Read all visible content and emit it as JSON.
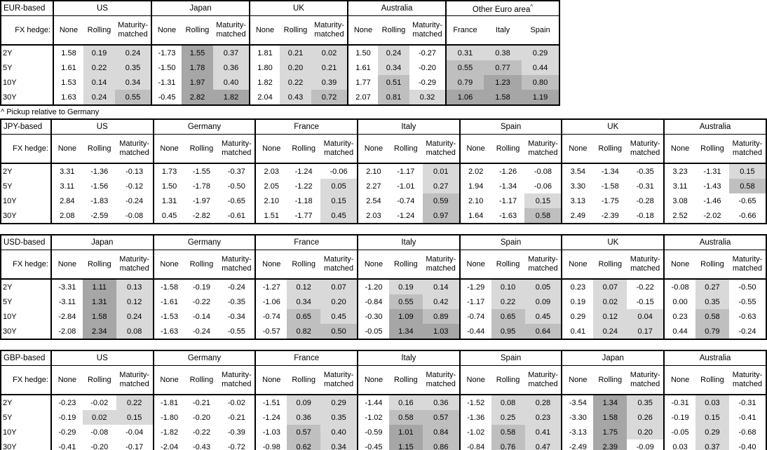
{
  "labels": {
    "hedge": "FX hedge:"
  },
  "tenors": [
    "2Y",
    "5Y",
    "10Y",
    "30Y"
  ],
  "colors": {
    "shade_low": "#d9d9d9",
    "shade_mid": "#bfbfbf",
    "shade_high": "#a6a6a6",
    "border": "#000000"
  },
  "tables": [
    {
      "base": "EUR-based",
      "footnote": "^ Pickup relative to Germany",
      "groups": [
        {
          "name": "US",
          "cols": [
            "None",
            "Rolling",
            "Maturity-matched"
          ],
          "shade_all": false,
          "rows": [
            [
              "1.58",
              "0.19",
              "0.24"
            ],
            [
              "1.61",
              "0.22",
              "0.35"
            ],
            [
              "1.53",
              "0.14",
              "0.34"
            ],
            [
              "1.63",
              "0.24",
              "0.55"
            ]
          ]
        },
        {
          "name": "Japan",
          "cols": [
            "None",
            "Rolling",
            "Maturity-matched"
          ],
          "shade_all": false,
          "rows": [
            [
              "-1.73",
              "1.55",
              "0.37"
            ],
            [
              "-1.50",
              "1.78",
              "0.36"
            ],
            [
              "-1.31",
              "1.97",
              "0.40"
            ],
            [
              "-0.45",
              "2.82",
              "1.82"
            ]
          ]
        },
        {
          "name": "UK",
          "cols": [
            "None",
            "Rolling",
            "Maturity-matched"
          ],
          "shade_all": false,
          "rows": [
            [
              "1.81",
              "0.21",
              "0.02"
            ],
            [
              "1.80",
              "0.20",
              "0.21"
            ],
            [
              "1.82",
              "0.22",
              "0.39"
            ],
            [
              "2.04",
              "0.43",
              "0.72"
            ]
          ]
        },
        {
          "name": "Australia",
          "cols": [
            "None",
            "Rolling",
            "Maturity-matched"
          ],
          "shade_all": false,
          "rows": [
            [
              "1.50",
              "0.24",
              "-0.27"
            ],
            [
              "1.61",
              "0.34",
              "-0.20"
            ],
            [
              "1.77",
              "0.51",
              "-0.29"
            ],
            [
              "2.07",
              "0.81",
              "0.32"
            ]
          ]
        },
        {
          "name": "Other Euro area",
          "sup": "^",
          "cols": [
            "France",
            "Italy",
            "Spain"
          ],
          "shade_all": true,
          "rows": [
            [
              "0.31",
              "0.38",
              "0.29"
            ],
            [
              "0.55",
              "0.77",
              "0.44"
            ],
            [
              "0.79",
              "1.23",
              "0.80"
            ],
            [
              "1.06",
              "1.58",
              "1.19"
            ]
          ]
        }
      ]
    },
    {
      "base": "JPY-based",
      "groups": [
        {
          "name": "US",
          "cols": [
            "None",
            "Rolling",
            "Maturity-matched"
          ],
          "shade_all": false,
          "rows": [
            [
              "3.31",
              "-1.36",
              "-0.13"
            ],
            [
              "3.11",
              "-1.56",
              "-0.12"
            ],
            [
              "2.84",
              "-1.83",
              "-0.24"
            ],
            [
              "2.08",
              "-2.59",
              "-0.08"
            ]
          ]
        },
        {
          "name": "Germany",
          "cols": [
            "None",
            "Rolling",
            "Maturity-matched"
          ],
          "shade_all": false,
          "rows": [
            [
              "1.73",
              "-1.55",
              "-0.37"
            ],
            [
              "1.50",
              "-1.78",
              "-0.50"
            ],
            [
              "1.31",
              "-1.97",
              "-0.65"
            ],
            [
              "0.45",
              "-2.82",
              "-0.61"
            ]
          ]
        },
        {
          "name": "France",
          "cols": [
            "None",
            "Rolling",
            "Maturity-matched"
          ],
          "shade_all": false,
          "rows": [
            [
              "2.03",
              "-1.24",
              "-0.06"
            ],
            [
              "2.05",
              "-1.22",
              "0.05"
            ],
            [
              "2.10",
              "-1.18",
              "0.15"
            ],
            [
              "1.51",
              "-1.77",
              "0.45"
            ]
          ]
        },
        {
          "name": "Italy",
          "cols": [
            "None",
            "Rolling",
            "Maturity-matched"
          ],
          "shade_all": false,
          "rows": [
            [
              "2.10",
              "-1.17",
              "0.01"
            ],
            [
              "2.27",
              "-1.01",
              "0.27"
            ],
            [
              "2.54",
              "-0.74",
              "0.59"
            ],
            [
              "2.03",
              "-1.24",
              "0.97"
            ]
          ]
        },
        {
          "name": "Spain",
          "cols": [
            "None",
            "Rolling",
            "Maturity-matched"
          ],
          "shade_all": false,
          "rows": [
            [
              "2.02",
              "-1.26",
              "-0.08"
            ],
            [
              "1.94",
              "-1.34",
              "-0.06"
            ],
            [
              "2.10",
              "-1.17",
              "0.15"
            ],
            [
              "1.64",
              "-1.63",
              "0.58"
            ]
          ]
        },
        {
          "name": "UK",
          "cols": [
            "None",
            "Rolling",
            "Maturity-matched"
          ],
          "shade_all": false,
          "rows": [
            [
              "3.54",
              "-1.34",
              "-0.35"
            ],
            [
              "3.30",
              "-1.58",
              "-0.31"
            ],
            [
              "3.13",
              "-1.75",
              "-0.28"
            ],
            [
              "2.49",
              "-2.39",
              "-0.18"
            ]
          ]
        },
        {
          "name": "Australia",
          "cols": [
            "None",
            "Rolling",
            "Maturity-matched"
          ],
          "shade_all": false,
          "rows": [
            [
              "3.23",
              "-1.31",
              "0.15"
            ],
            [
              "3.11",
              "-1.43",
              "0.58"
            ],
            [
              "3.08",
              "-1.46",
              "-0.65"
            ],
            [
              "2.52",
              "-2.02",
              "-0.66"
            ]
          ]
        }
      ]
    },
    {
      "base": "USD-based",
      "groups": [
        {
          "name": "Japan",
          "cols": [
            "None",
            "Rolling",
            "Maturity-matched"
          ],
          "shade_all": false,
          "rows": [
            [
              "-3.31",
              "1.11",
              "0.13"
            ],
            [
              "-3.11",
              "1.31",
              "0.12"
            ],
            [
              "-2.84",
              "1.58",
              "0.24"
            ],
            [
              "-2.08",
              "2.34",
              "0.08"
            ]
          ]
        },
        {
          "name": "Germany",
          "cols": [
            "None",
            "Rolling",
            "Maturity-matched"
          ],
          "shade_all": false,
          "rows": [
            [
              "-1.58",
              "-0.19",
              "-0.24"
            ],
            [
              "-1.61",
              "-0.22",
              "-0.35"
            ],
            [
              "-1.53",
              "-0.14",
              "-0.34"
            ],
            [
              "-1.63",
              "-0.24",
              "-0.55"
            ]
          ]
        },
        {
          "name": "France",
          "cols": [
            "None",
            "Rolling",
            "Maturity-matched"
          ],
          "shade_all": false,
          "rows": [
            [
              "-1.27",
              "0.12",
              "0.07"
            ],
            [
              "-1.06",
              "0.34",
              "0.20"
            ],
            [
              "-0.74",
              "0.65",
              "0.45"
            ],
            [
              "-0.57",
              "0.82",
              "0.50"
            ]
          ]
        },
        {
          "name": "Italy",
          "cols": [
            "None",
            "Rolling",
            "Maturity-matched"
          ],
          "shade_all": false,
          "rows": [
            [
              "-1.20",
              "0.19",
              "0.14"
            ],
            [
              "-0.84",
              "0.55",
              "0.42"
            ],
            [
              "-0.30",
              "1.09",
              "0.89"
            ],
            [
              "-0.05",
              "1.34",
              "1.03"
            ]
          ]
        },
        {
          "name": "Spain",
          "cols": [
            "None",
            "Rolling",
            "Maturity-matched"
          ],
          "shade_all": false,
          "rows": [
            [
              "-1.29",
              "0.10",
              "0.05"
            ],
            [
              "-1.17",
              "0.22",
              "0.09"
            ],
            [
              "-0.74",
              "0.65",
              "0.45"
            ],
            [
              "-0.44",
              "0.95",
              "0.64"
            ]
          ]
        },
        {
          "name": "UK",
          "cols": [
            "None",
            "Rolling",
            "Maturity-matched"
          ],
          "shade_all": false,
          "rows": [
            [
              "0.23",
              "0.07",
              "-0.22"
            ],
            [
              "0.19",
              "0.02",
              "-0.15"
            ],
            [
              "0.29",
              "0.12",
              "0.04"
            ],
            [
              "0.41",
              "0.24",
              "0.17"
            ]
          ]
        },
        {
          "name": "Australia",
          "cols": [
            "None",
            "Rolling",
            "Maturity-matched"
          ],
          "shade_all": false,
          "rows": [
            [
              "-0.08",
              "0.27",
              "-0.50"
            ],
            [
              "0.00",
              "0.35",
              "-0.55"
            ],
            [
              "0.23",
              "0.58",
              "-0.63"
            ],
            [
              "0.44",
              "0.79",
              "-0.24"
            ]
          ]
        }
      ]
    },
    {
      "base": "GBP-based",
      "groups": [
        {
          "name": "US",
          "cols": [
            "None",
            "Rolling",
            "Maturity-matched"
          ],
          "shade_all": false,
          "rows": [
            [
              "-0.23",
              "-0.02",
              "0.22"
            ],
            [
              "-0.19",
              "0.02",
              "0.15"
            ],
            [
              "-0.29",
              "-0.08",
              "-0.04"
            ],
            [
              "-0.41",
              "-0.20",
              "-0.17"
            ]
          ]
        },
        {
          "name": "Germany",
          "cols": [
            "None",
            "Rolling",
            "Maturity-matched"
          ],
          "shade_all": false,
          "rows": [
            [
              "-1.81",
              "-0.21",
              "-0.02"
            ],
            [
              "-1.80",
              "-0.20",
              "-0.21"
            ],
            [
              "-1.82",
              "-0.22",
              "-0.39"
            ],
            [
              "-2.04",
              "-0.43",
              "-0.72"
            ]
          ]
        },
        {
          "name": "France",
          "cols": [
            "None",
            "Rolling",
            "Maturity-matched"
          ],
          "shade_all": false,
          "rows": [
            [
              "-1.51",
              "0.09",
              "0.29"
            ],
            [
              "-1.24",
              "0.36",
              "0.35"
            ],
            [
              "-1.03",
              "0.57",
              "0.40"
            ],
            [
              "-0.98",
              "0.62",
              "0.34"
            ]
          ]
        },
        {
          "name": "Italy",
          "cols": [
            "None",
            "Rolling",
            "Maturity-matched"
          ],
          "shade_all": false,
          "rows": [
            [
              "-1.44",
              "0.16",
              "0.36"
            ],
            [
              "-1.02",
              "0.58",
              "0.57"
            ],
            [
              "-0.59",
              "1.01",
              "0.84"
            ],
            [
              "-0.45",
              "1.15",
              "0.86"
            ]
          ]
        },
        {
          "name": "Spain",
          "cols": [
            "None",
            "Rolling",
            "Maturity-matched"
          ],
          "shade_all": false,
          "rows": [
            [
              "-1.52",
              "0.08",
              "0.28"
            ],
            [
              "-1.36",
              "0.25",
              "0.23"
            ],
            [
              "-1.02",
              "0.58",
              "0.41"
            ],
            [
              "-0.84",
              "0.76",
              "0.47"
            ]
          ]
        },
        {
          "name": "Japan",
          "cols": [
            "None",
            "Rolling",
            "Maturity-matched"
          ],
          "shade_all": false,
          "rows": [
            [
              "-3.54",
              "1.34",
              "0.35"
            ],
            [
              "-3.30",
              "1.58",
              "0.26"
            ],
            [
              "-3.13",
              "1.75",
              "0.20"
            ],
            [
              "-2.49",
              "2.39",
              "-0.09"
            ]
          ]
        },
        {
          "name": "Australia",
          "cols": [
            "None",
            "Rolling",
            "Maturity-matched"
          ],
          "shade_all": false,
          "rows": [
            [
              "-0.31",
              "0.03",
              "-0.31"
            ],
            [
              "-0.19",
              "0.15",
              "-0.41"
            ],
            [
              "-0.05",
              "0.29",
              "-0.68"
            ],
            [
              "0.03",
              "0.37",
              "-0.40"
            ]
          ]
        }
      ]
    }
  ]
}
